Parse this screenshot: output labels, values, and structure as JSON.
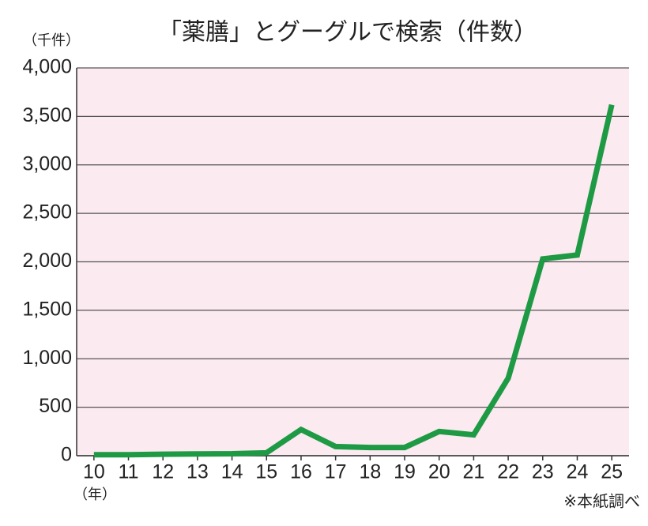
{
  "chart_data": {
    "type": "line",
    "title": "「薬膳」とグーグルで検索（件数）",
    "y_label": "（千件）",
    "x_label": "（年）",
    "note": "※本紙調べ",
    "x": [
      10,
      11,
      12,
      13,
      14,
      15,
      16,
      17,
      18,
      19,
      20,
      21,
      22,
      23,
      24,
      25
    ],
    "xlim": [
      9.5,
      25.5
    ],
    "xticks": [
      10,
      11,
      12,
      13,
      14,
      15,
      16,
      17,
      18,
      19,
      20,
      21,
      22,
      23,
      24,
      25
    ],
    "series": [
      {
        "color": "#1e9a45",
        "values": [
          10,
          10,
          15,
          18,
          20,
          30,
          270,
          95,
          85,
          85,
          250,
          215,
          800,
          2030,
          2070,
          3620
        ]
      }
    ],
    "ylim": [
      0,
      4000
    ],
    "yticks": [
      0,
      500,
      {
        "value": 1000,
        "label": "1,000"
      },
      {
        "value": 1500,
        "label": "1,500"
      },
      {
        "value": 2000,
        "label": "2,000"
      },
      {
        "value": 2500,
        "label": "2,500"
      },
      {
        "value": 3000,
        "label": "3,000"
      },
      {
        "value": 3500,
        "label": "3,500"
      },
      {
        "value": 4000,
        "label": "4,000"
      }
    ],
    "grid": true,
    "background": "#fbeaf0"
  }
}
